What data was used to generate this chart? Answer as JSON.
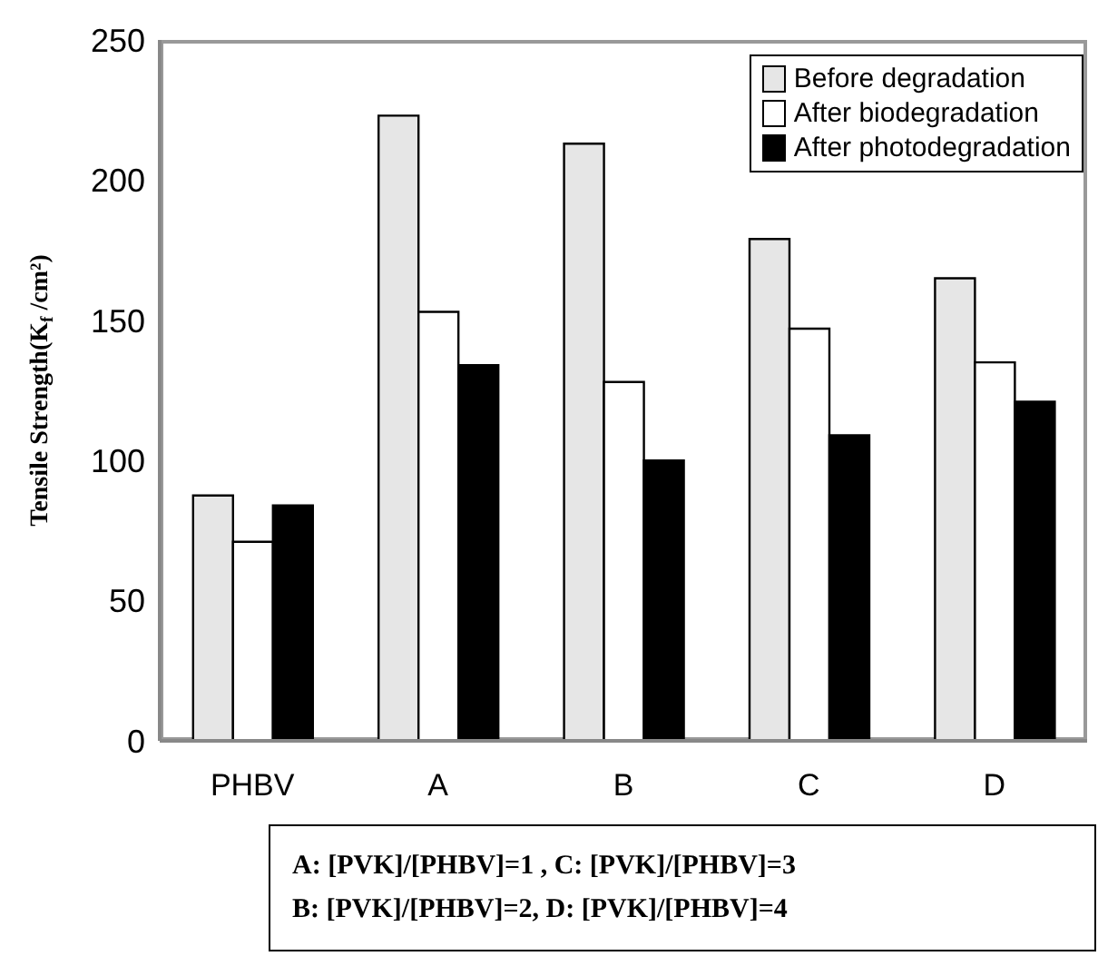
{
  "chart_data": {
    "type": "bar",
    "ylabel": "Tensile Strength(K$_{f}$/cm²)",
    "categories": [
      "PHBV",
      "A",
      "B",
      "C",
      "D"
    ],
    "series": [
      {
        "name": "Before degradation",
        "color": "#e6e6e6",
        "values": [
          87.5,
          223,
          213,
          179,
          165
        ]
      },
      {
        "name": "After biodegradation",
        "color": "#ffffff",
        "values": [
          71,
          153,
          128,
          147,
          135
        ]
      },
      {
        "name": "After photodegradation",
        "color": "#000000",
        "values": [
          84,
          134,
          100,
          109,
          121
        ]
      }
    ],
    "ylim": [
      0,
      250
    ],
    "yticks": [
      0,
      50,
      100,
      150,
      200,
      250
    ],
    "grid": false,
    "legend": "top right",
    "annotations": [
      "A: [PVK]/[PHBV]=1 , C: [PVK]/[PHBV]=3",
      "B: [PVK]/[PHBV]=2,  D: [PVK]/[PHBV]=4"
    ]
  }
}
